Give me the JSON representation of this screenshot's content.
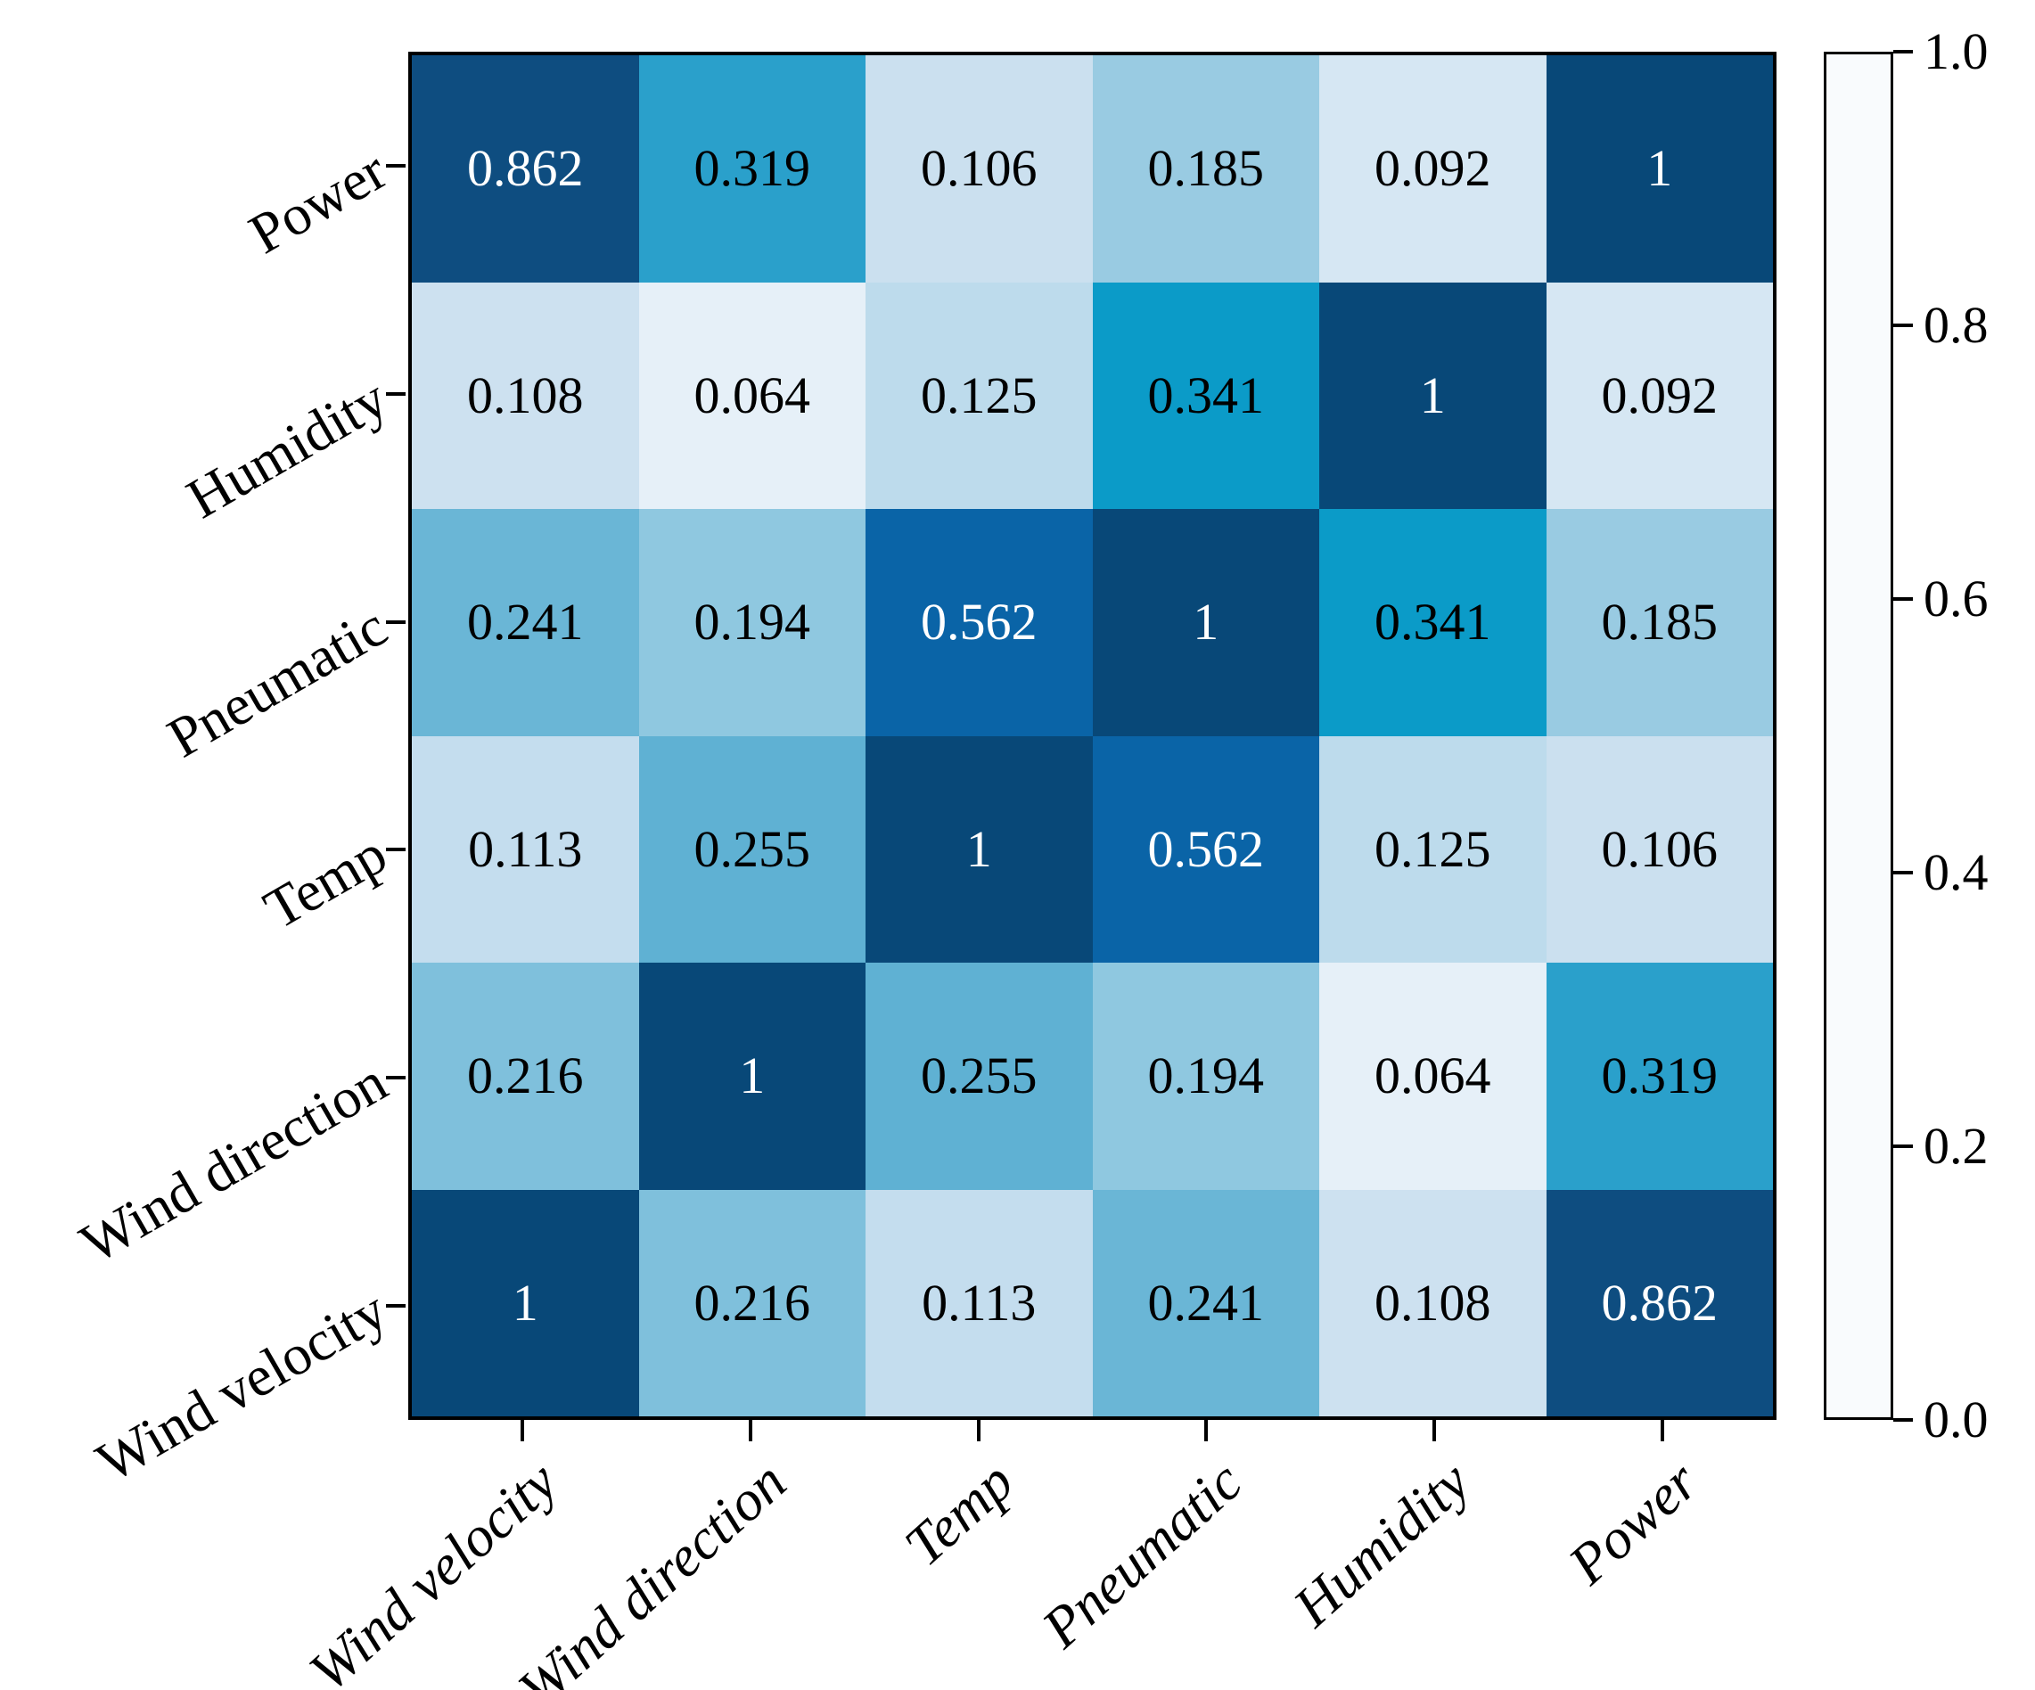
{
  "chart_data": {
    "type": "heatmap",
    "title": "",
    "rows": [
      "Power",
      "Humidity",
      "Pneumatic",
      "Temp",
      "Wind direction",
      "Wind velocity"
    ],
    "columns": [
      "Wind velocity",
      "Wind direction",
      "Temp",
      "Pneumatic",
      "Humidity",
      "Power"
    ],
    "matrix": [
      [
        0.862,
        0.319,
        0.106,
        0.185,
        0.092,
        1
      ],
      [
        0.108,
        0.064,
        0.125,
        0.341,
        1,
        0.092
      ],
      [
        0.241,
        0.194,
        0.562,
        1,
        0.341,
        0.185
      ],
      [
        0.113,
        0.255,
        1,
        0.562,
        0.125,
        0.106
      ],
      [
        0.216,
        1,
        0.255,
        0.194,
        0.064,
        0.319
      ],
      [
        1,
        0.216,
        0.113,
        0.241,
        0.108,
        0.862
      ]
    ],
    "value_colors": {
      "1": "#084878",
      "0.862": "#0e4d80",
      "0.562": "#0a64a7",
      "0.341": "#0b9bc8",
      "0.319": "#2aa0cb",
      "0.255": "#5fb1d3",
      "0.241": "#6ab6d6",
      "0.216": "#7fc0dc",
      "0.194": "#8fc8e0",
      "0.185": "#99cbe2",
      "0.125": "#bddbec",
      "0.113": "#c4ddee",
      "0.108": "#cde1f0",
      "0.106": "#cbe0ef",
      "0.092": "#d6e7f3",
      "0.064": "#e6f0f8"
    },
    "text_color_threshold": 0.5,
    "colorbar": {
      "ticks": [
        "1.0",
        "0.8",
        "0.6",
        "0.4",
        "0.2",
        "0.0"
      ],
      "min": 0,
      "max": 1,
      "levels": 30,
      "position": "right",
      "stops": [
        [
          0.0,
          "#ffffff"
        ],
        [
          0.05,
          "#eef4fa"
        ],
        [
          0.1,
          "#d8e8f3"
        ],
        [
          0.15,
          "#bfdcec"
        ],
        [
          0.2,
          "#a3d1e5"
        ],
        [
          0.25,
          "#81c1dc"
        ],
        [
          0.3,
          "#58b0d2"
        ],
        [
          0.33,
          "#2ba1cb"
        ],
        [
          0.37,
          "#0d9ac7"
        ],
        [
          0.42,
          "#0b89bd"
        ],
        [
          0.48,
          "#0a7cb4"
        ],
        [
          0.56,
          "#0a68a9"
        ],
        [
          0.62,
          "#0a5fa0"
        ],
        [
          0.7,
          "#0b5793"
        ],
        [
          0.8,
          "#0d5088"
        ],
        [
          0.9,
          "#0b4a7d"
        ],
        [
          1.0,
          "#084878"
        ]
      ]
    },
    "grid": false,
    "legend": "none",
    "xlabel": "",
    "ylabel": ""
  }
}
